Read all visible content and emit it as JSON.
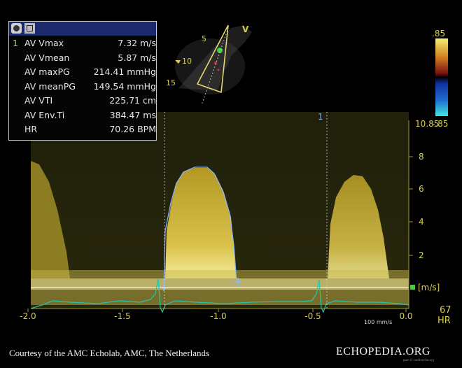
{
  "measurements": {
    "rows": [
      {
        "index": "1",
        "label": "AV Vmax",
        "value": "7.32 m/s"
      },
      {
        "index": "",
        "label": "AV Vmean",
        "value": "5.87 m/s"
      },
      {
        "index": "",
        "label": "AV maxPG",
        "value": "214.41 mmHg"
      },
      {
        "index": "",
        "label": "AV meanPG",
        "value": "149.54 mmHg"
      },
      {
        "index": "",
        "label": "AV VTI",
        "value": "225.71 cm"
      },
      {
        "index": "",
        "label": "AV Env.Ti",
        "value": "384.47 ms"
      },
      {
        "index": "",
        "label": "HR",
        "value": "70.26 BPM"
      }
    ]
  },
  "probe": {
    "marker": "V",
    "depth_ticks": [
      "5",
      "10",
      "15"
    ]
  },
  "color_bar": {
    "top": ".85",
    "bottom": "-.85"
  },
  "doppler": {
    "cursor_label": "1",
    "scale_top": "10.85",
    "velocity_ticks": [
      "8",
      "6",
      "4",
      "2"
    ],
    "velocity_unit": "[m/s]",
    "time_ticks": [
      "-2.0",
      "-1.5",
      "-1.0",
      "-0.5",
      "0.0"
    ],
    "sweep_speed": "100 mm/s",
    "heart_rate": "67",
    "heart_rate_unit": "HR"
  },
  "colors": {
    "accent_yellow": "#d8cf4a",
    "ecg": "#2bc4a8",
    "envelope": "#8ab8ff",
    "baseline_marker": "#3fd23f"
  },
  "footer": {
    "credit": "Courtesy of the AMC Echolab, AMC, The Netherlands",
    "logo": "ECHOPEDIA.ORG",
    "logo_subtitle": "part of cardioecho.org"
  }
}
